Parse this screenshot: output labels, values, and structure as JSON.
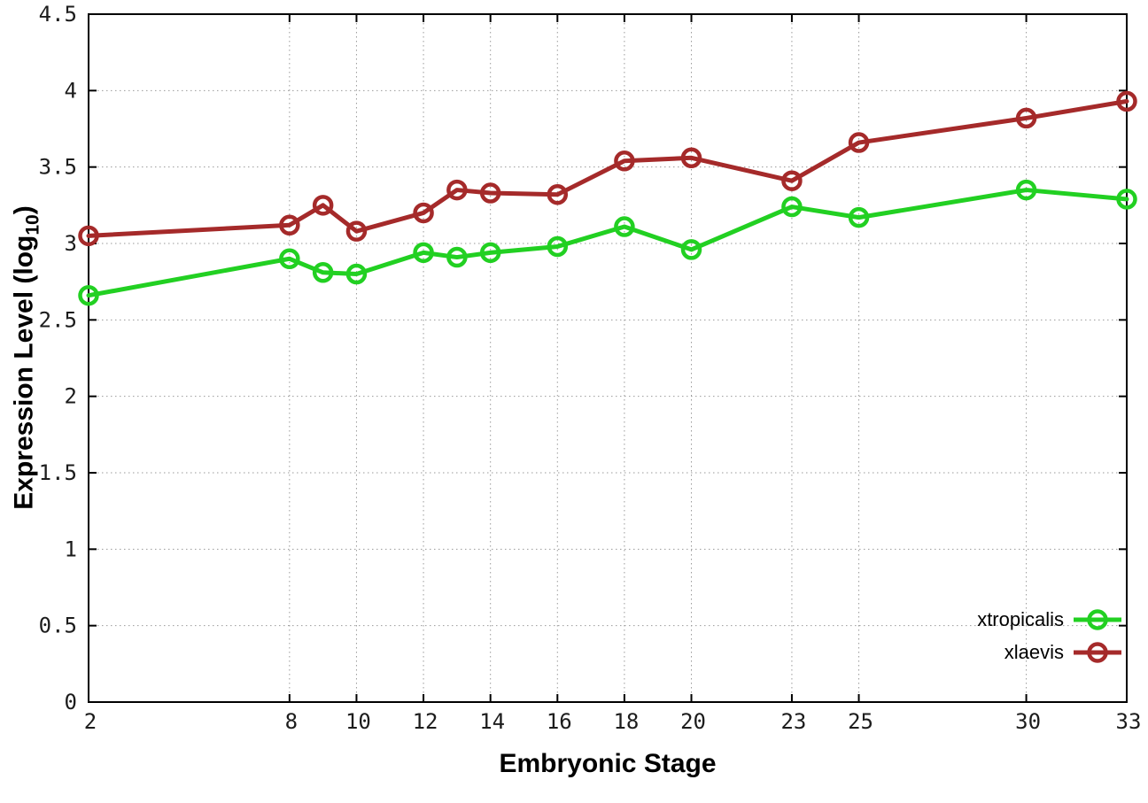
{
  "chart_data": {
    "type": "line",
    "xlabel": "Embryonic Stage",
    "ylabel": "Expression Level (log10)",
    "ylabel_parts": {
      "prefix": "Expression Level (log",
      "subscript": "10",
      "suffix": ")"
    },
    "xlim": [
      2,
      33
    ],
    "ylim": [
      0,
      4.5
    ],
    "grid": true,
    "legend_position": "bottom-right-inside",
    "x_ticks": [
      {
        "value": 2,
        "label": "2"
      },
      {
        "value": 8,
        "label": "8"
      },
      {
        "value": 10,
        "label": "10"
      },
      {
        "value": 12,
        "label": "12"
      },
      {
        "value": 14,
        "label": "14"
      },
      {
        "value": 16,
        "label": "16"
      },
      {
        "value": 18,
        "label": "18"
      },
      {
        "value": 20,
        "label": "20"
      },
      {
        "value": 23,
        "label": "23"
      },
      {
        "value": 25,
        "label": "25"
      },
      {
        "value": 30,
        "label": "30"
      },
      {
        "value": 33,
        "label": "33"
      }
    ],
    "y_ticks": [
      {
        "value": 0,
        "label": "0"
      },
      {
        "value": 0.5,
        "label": "0.5"
      },
      {
        "value": 1,
        "label": "1"
      },
      {
        "value": 1.5,
        "label": "1.5"
      },
      {
        "value": 2,
        "label": "2"
      },
      {
        "value": 2.5,
        "label": "2.5"
      },
      {
        "value": 3,
        "label": "3"
      },
      {
        "value": 3.5,
        "label": "3.5"
      },
      {
        "value": 4,
        "label": "4"
      },
      {
        "value": 4.5,
        "label": "4.5"
      }
    ],
    "x": [
      2,
      8,
      9,
      10,
      12,
      13,
      14,
      16,
      18,
      20,
      23,
      25,
      30,
      33
    ],
    "series": [
      {
        "name": "xtropicalis",
        "color": "#22d022",
        "marker": "open-circle",
        "values": [
          2.66,
          2.9,
          2.81,
          2.8,
          2.94,
          2.91,
          2.94,
          2.98,
          3.11,
          2.96,
          3.24,
          3.17,
          3.35,
          3.29
        ]
      },
      {
        "name": "xlaevis",
        "color": "#a52a2a",
        "marker": "open-circle",
        "values": [
          3.05,
          3.12,
          3.25,
          3.08,
          3.2,
          3.35,
          3.33,
          3.32,
          3.54,
          3.56,
          3.41,
          3.66,
          3.82,
          3.93
        ]
      }
    ]
  }
}
